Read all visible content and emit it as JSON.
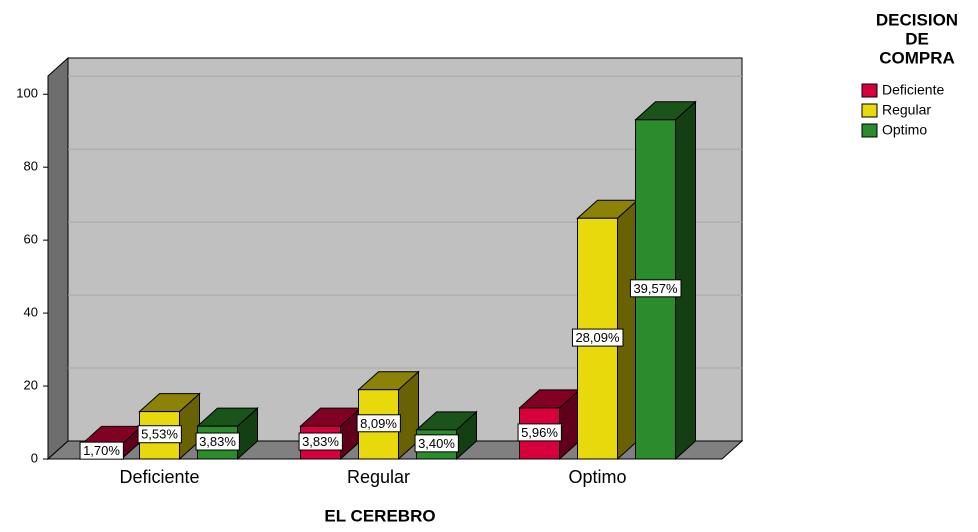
{
  "chart_data": {
    "type": "bar3d",
    "x_label": "EL CEREBRO",
    "legend_title": [
      "DECISION",
      "DE",
      "COMPRA"
    ],
    "categories": [
      "Deficiente",
      "Regular",
      "Optimo"
    ],
    "series": [
      {
        "name": "Deficiente",
        "color": "#d8003c",
        "values": [
          4,
          9,
          14
        ],
        "value_labels": [
          "1,70%",
          "3,83%",
          "5,96%"
        ]
      },
      {
        "name": "Regular",
        "color": "#e8d90c",
        "values": [
          13,
          19,
          66
        ],
        "value_labels": [
          "5,53%",
          "8,09%",
          "28,09%"
        ]
      },
      {
        "name": "Optimo",
        "color": "#2b8c2b",
        "values": [
          9,
          8,
          93
        ],
        "value_labels": [
          "3,83%",
          "3,40%",
          "39,57%"
        ]
      }
    ],
    "ylim": [
      0,
      105
    ],
    "yticks": [
      0,
      20,
      40,
      60,
      80,
      100
    ],
    "grid": true,
    "legend": "right"
  }
}
